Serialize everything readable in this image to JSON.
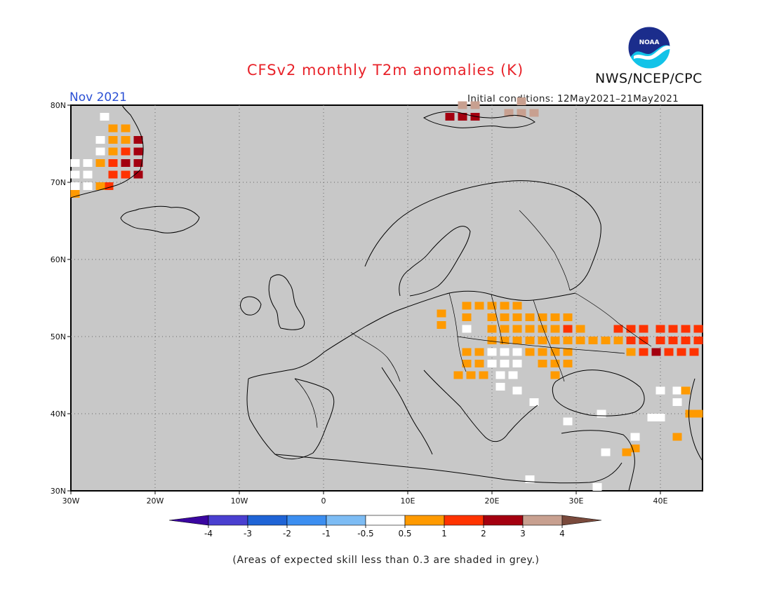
{
  "header": {
    "title": "CFSv2 monthly T2m anomalies (K)",
    "org": "NWS/NCEP/CPC",
    "logo_text": "NOAA",
    "month": "Nov 2021",
    "initial_conditions": "Initial conditions: 12May2021–21May2021"
  },
  "map": {
    "lon_labels": [
      "30W",
      "20W",
      "10W",
      "0",
      "10E",
      "20E",
      "30E",
      "40E"
    ],
    "lon_values": [
      -30,
      -20,
      -10,
      0,
      10,
      20,
      30,
      40
    ],
    "lat_labels": [
      "80N",
      "70N",
      "60N",
      "50N",
      "40N",
      "30N"
    ],
    "lat_values": [
      80,
      70,
      60,
      50,
      40,
      30
    ],
    "lon_range": [
      -30,
      45
    ],
    "lat_range": [
      30,
      80
    ],
    "background_color": "#c8c8c8",
    "grid": "dotted"
  },
  "colorbar": {
    "colors": [
      "#3a06a0",
      "#4a3fd0",
      "#1f64d6",
      "#3c8ef0",
      "#7dbcf4",
      "#ffffff",
      "#ff9a00",
      "#ff3300",
      "#a40010",
      "#c8a090",
      "#7a4a3c"
    ],
    "labels": [
      "-4",
      "-3",
      "-2",
      "-1",
      "-0.5",
      "0.5",
      "1",
      "2",
      "3",
      "4"
    ]
  },
  "footnote": "(Areas of expected skill less than 0.3 are shaded in grey.)"
}
